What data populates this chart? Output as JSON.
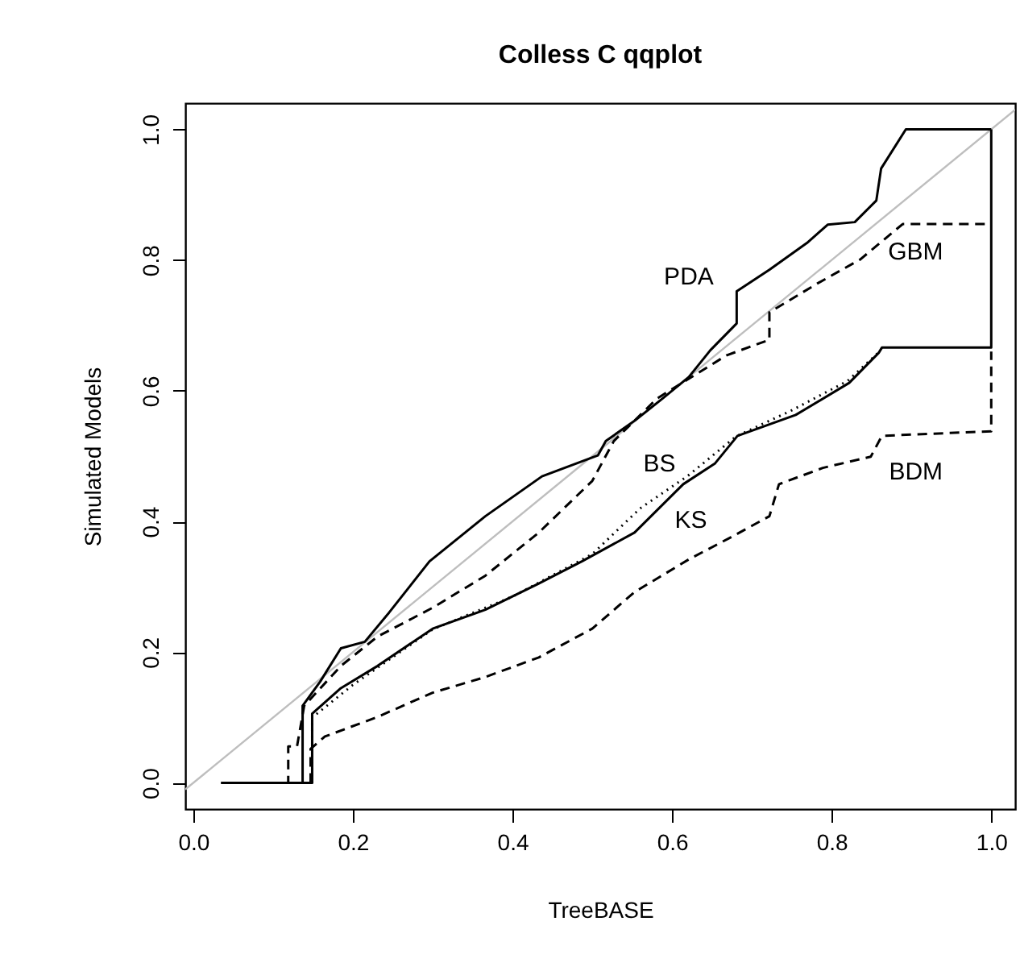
{
  "chart_data": {
    "type": "line",
    "title": "Colless C qqplot",
    "xlabel": "TreeBASE",
    "ylabel": "Simulated Models",
    "xlim": [
      -0.01,
      1.03
    ],
    "ylim": [
      -0.04,
      1.04
    ],
    "xticks": [
      {
        "value": 0,
        "label": "0.0"
      },
      0.2,
      0.4,
      0.6,
      0.8,
      {
        "value": 1,
        "label": "1.0"
      }
    ],
    "yticks": [
      {
        "value": 0,
        "label": "0.0"
      },
      0.2,
      0.4,
      0.6,
      0.8,
      {
        "value": 1,
        "label": "1.0"
      }
    ],
    "grid": false,
    "marker": "none",
    "series": [
      {
        "color": "#bebebe",
        "line_style": "solid",
        "x": [
          -0.01,
          1.03
        ],
        "values": [
          -0.01,
          1.03
        ]
      },
      {
        "name": "PDA",
        "color": "#000000",
        "line_style": "solid",
        "x": [
          0.035,
          0.137,
          0.137,
          0.159,
          0.185,
          0.215,
          0.245,
          0.296,
          0.366,
          0.437,
          0.507,
          0.517,
          0.554,
          0.588,
          0.621,
          0.648,
          0.681,
          0.681,
          0.722,
          0.769,
          0.795,
          0.829,
          0.856,
          0.862,
          0.893,
          1.0
        ],
        "values": [
          0,
          0,
          0.118,
          0.155,
          0.206,
          0.216,
          0.26,
          0.339,
          0.408,
          0.469,
          0.501,
          0.523,
          0.555,
          0.588,
          0.621,
          0.662,
          0.703,
          0.752,
          0.785,
          0.826,
          0.854,
          0.858,
          0.891,
          0.94,
          1.0,
          1.0
        ]
      },
      {
        "name": "GBM",
        "color": "#000000",
        "line_style": "dashed",
        "x": [
          0.035,
          0.119,
          0.119,
          0.13,
          0.139,
          0.185,
          0.231,
          0.3,
          0.366,
          0.433,
          0.5,
          0.527,
          0.581,
          0.668,
          0.722,
          0.722,
          0.782,
          0.836,
          0.889,
          1.0
        ],
        "values": [
          0,
          0,
          0.056,
          0.056,
          0.118,
          0.179,
          0.224,
          0.268,
          0.317,
          0.383,
          0.462,
          0.523,
          0.588,
          0.654,
          0.678,
          0.72,
          0.764,
          0.801,
          0.855,
          0.855
        ]
      },
      {
        "name": "BS",
        "color": "#000000",
        "line_style": "dotted",
        "x": [
          0.149,
          0.149,
          0.2,
          0.3,
          0.4,
          0.5,
          0.56,
          0.62,
          0.68,
          0.75,
          0.82,
          0.86
        ],
        "values": [
          0,
          0.1,
          0.15,
          0.235,
          0.285,
          0.35,
          0.42,
          0.47,
          0.53,
          0.57,
          0.615,
          0.66
        ]
      },
      {
        "name": "KS",
        "color": "#000000",
        "line_style": "solid",
        "x": [
          0.035,
          0.149,
          0.149,
          0.185,
          0.231,
          0.3,
          0.366,
          0.433,
          0.487,
          0.553,
          0.614,
          0.654,
          0.682,
          0.755,
          0.822,
          0.859,
          0.863,
          1.0,
          1.0
        ],
        "values": [
          0,
          0,
          0.106,
          0.145,
          0.179,
          0.236,
          0.265,
          0.305,
          0.339,
          0.383,
          0.457,
          0.489,
          0.531,
          0.563,
          0.612,
          0.658,
          0.666,
          0.666,
          1.0
        ]
      },
      {
        "name": "BDM",
        "color": "#000000",
        "line_style": "dashed",
        "x": [
          0.147,
          0.147,
          0.165,
          0.231,
          0.3,
          0.366,
          0.433,
          0.5,
          0.553,
          0.621,
          0.674,
          0.722,
          0.734,
          0.789,
          0.849,
          0.863,
          1.0,
          1.0
        ],
        "values": [
          0,
          0.052,
          0.071,
          0.101,
          0.138,
          0.162,
          0.192,
          0.236,
          0.292,
          0.342,
          0.376,
          0.408,
          0.457,
          0.482,
          0.499,
          0.531,
          0.538,
          0.66
        ]
      }
    ]
  }
}
